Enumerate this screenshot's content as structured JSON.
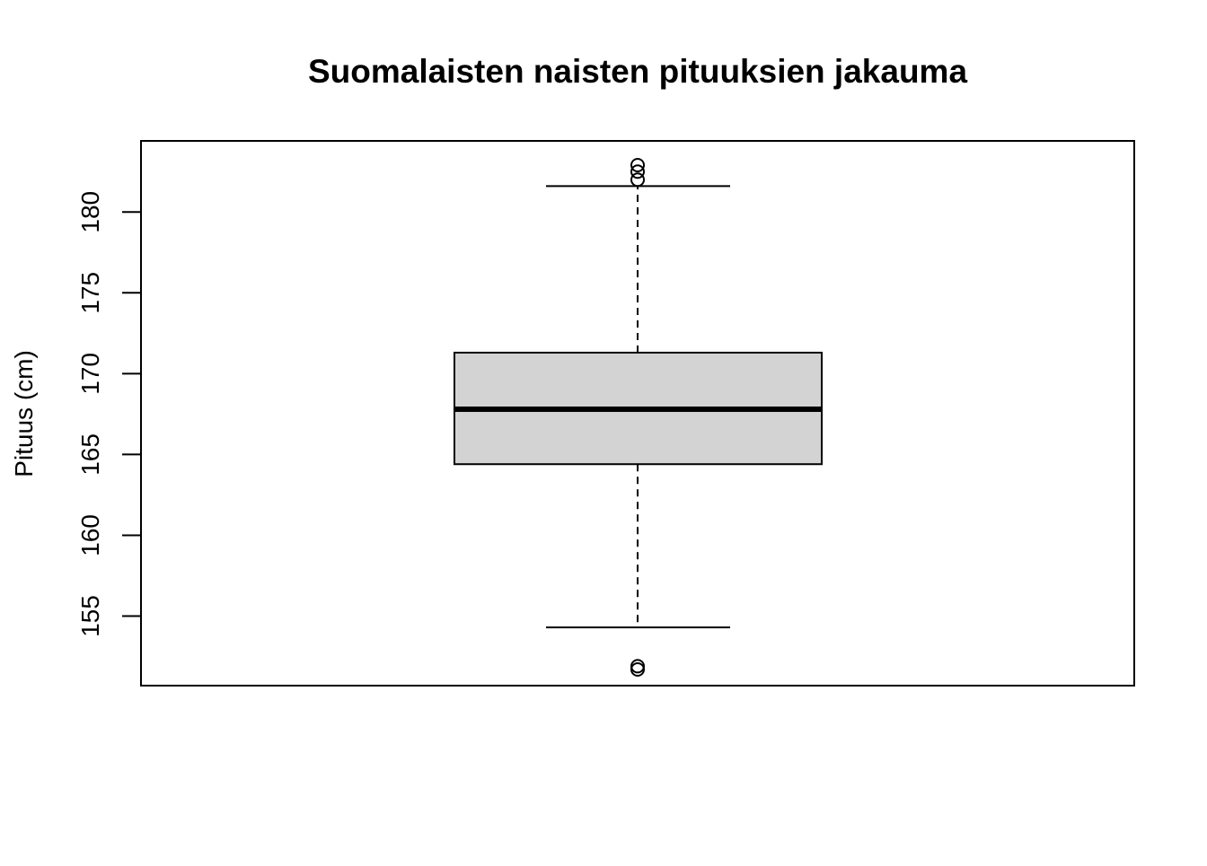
{
  "chart_data": {
    "type": "boxplot",
    "title": "Suomalaisten naisten pituuksien jakauma",
    "xlabel": "",
    "ylabel": "Pituus (cm)",
    "ylim": [
      150.7,
      184.4
    ],
    "y_ticks": [
      155,
      160,
      165,
      170,
      175,
      180
    ],
    "y_tick_labels": [
      "155",
      "160",
      "165",
      "170",
      "175",
      "180"
    ],
    "grid": false,
    "box": {
      "whisker_low": 154.3,
      "q1": 164.4,
      "median": 167.8,
      "q3": 171.3,
      "whisker_high": 181.6,
      "outliers": [
        151.9,
        151.7,
        182.0,
        182.5,
        182.9
      ],
      "fill_color": "#d3d3d3"
    }
  }
}
